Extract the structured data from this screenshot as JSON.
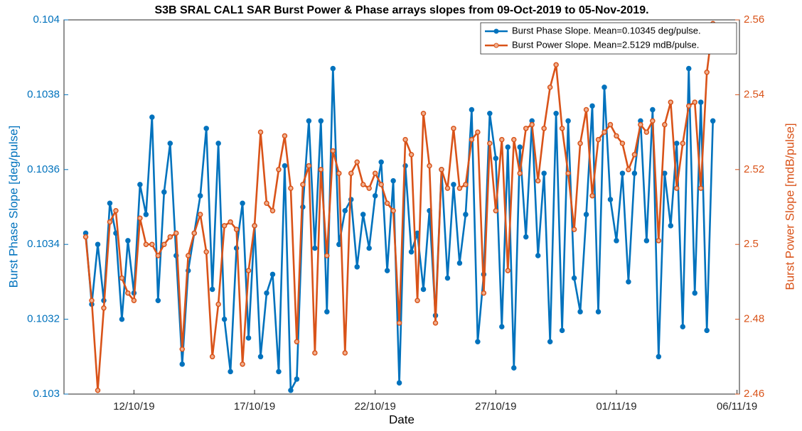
{
  "chart_data": {
    "type": "line",
    "title": "S3B SRAL CAL1 SAR Burst Power & Phase arrays slopes from 09-Oct-2019 to 05-Nov-2019.",
    "x_label": "Date",
    "y_label": "Burst Phase Slope [deg/pulse]",
    "y2_label": "Burst Power Slope [mdB/pulse]",
    "legend": "northeast",
    "xlim": [
      9.1,
      37.1
    ],
    "xticks": [
      {
        "value": 12,
        "label": "12/10/19"
      },
      {
        "value": 17,
        "label": "17/10/19"
      },
      {
        "value": 22,
        "label": "22/10/19"
      },
      {
        "value": 27,
        "label": "27/10/19"
      },
      {
        "value": 32,
        "label": "01/11/19"
      },
      {
        "value": 37,
        "label": "06/11/19"
      }
    ],
    "ylim": [
      0.103,
      0.104
    ],
    "yticks": [
      0.103,
      0.1032,
      0.1034,
      0.1036,
      0.1038,
      0.104
    ],
    "y2lim": [
      2.46,
      2.56
    ],
    "y2ticks": [
      2.46,
      2.48,
      2.5,
      2.52,
      2.54,
      2.56
    ],
    "x": [
      10,
      10.25,
      10.5,
      10.75,
      11,
      11.25,
      11.5,
      11.75,
      12,
      12.25,
      12.5,
      12.75,
      13,
      13.25,
      13.5,
      13.75,
      14,
      14.25,
      14.5,
      14.75,
      15,
      15.25,
      15.5,
      15.75,
      16,
      16.25,
      16.5,
      16.75,
      17,
      17.25,
      17.5,
      17.75,
      18,
      18.25,
      18.5,
      18.75,
      19,
      19.25,
      19.5,
      19.75,
      20,
      20.25,
      20.5,
      20.75,
      21,
      21.25,
      21.5,
      21.75,
      22,
      22.25,
      22.5,
      22.75,
      23,
      23.25,
      23.5,
      23.75,
      24,
      24.25,
      24.5,
      24.75,
      25,
      25.25,
      25.5,
      25.75,
      26,
      26.25,
      26.5,
      26.75,
      27,
      27.25,
      27.5,
      27.75,
      28,
      28.25,
      28.5,
      28.75,
      29,
      29.25,
      29.5,
      29.75,
      30,
      30.25,
      30.5,
      30.75,
      31,
      31.25,
      31.5,
      31.75,
      32,
      32.25,
      32.5,
      32.75,
      33,
      33.25,
      33.5,
      33.75,
      34,
      34.25,
      34.5,
      34.75,
      35,
      35.25,
      35.5,
      35.75,
      36
    ],
    "series": [
      {
        "name": "Burst Phase Slope. Mean=0.10345 deg/pulse.",
        "color": "#0072BD",
        "axis": "y",
        "values": [
          0.10343,
          0.10324,
          0.1034,
          0.10325,
          0.10351,
          0.10343,
          0.1032,
          0.10341,
          0.10327,
          0.10356,
          0.10348,
          0.10374,
          0.10325,
          0.10354,
          0.10367,
          0.10337,
          0.10308,
          0.10333,
          0.10343,
          0.10353,
          0.10371,
          0.10328,
          0.10367,
          0.1032,
          0.10306,
          0.10339,
          0.10351,
          0.10315,
          0.10345,
          0.1031,
          0.10327,
          0.10332,
          0.10306,
          0.10361,
          0.10301,
          0.10304,
          0.1035,
          0.10373,
          0.10339,
          0.10373,
          0.10322,
          0.10387,
          0.1034,
          0.10349,
          0.10352,
          0.10334,
          0.10348,
          0.10339,
          0.10353,
          0.10362,
          0.10333,
          0.10357,
          0.10303,
          0.10361,
          0.10338,
          0.10343,
          0.10328,
          0.10349,
          0.10321,
          0.1036,
          0.10331,
          0.10356,
          0.10335,
          0.10348,
          0.10376,
          0.10314,
          0.10332,
          0.10375,
          0.10363,
          0.10318,
          0.10366,
          0.10307,
          0.10366,
          0.10342,
          0.10373,
          0.10337,
          0.10359,
          0.10314,
          0.10375,
          0.10317,
          0.10373,
          0.10331,
          0.10322,
          0.10348,
          0.10377,
          0.10322,
          0.10382,
          0.10352,
          0.10341,
          0.10359,
          0.1033,
          0.10359,
          0.10373,
          0.10341,
          0.10376,
          0.1031,
          0.10359,
          0.10345,
          0.10367,
          0.10318,
          0.10387,
          0.10327,
          0.10378,
          0.10317,
          0.10373
        ]
      },
      {
        "name": "Burst Power Slope. Mean=2.5129 mdB/pulse.",
        "color": "#D95319",
        "axis": "y2",
        "values": [
          2.502,
          2.485,
          2.461,
          2.483,
          2.506,
          2.509,
          2.491,
          2.487,
          2.485,
          2.507,
          2.5,
          2.5,
          2.497,
          2.5,
          2.502,
          2.503,
          2.472,
          2.497,
          2.503,
          2.508,
          2.498,
          2.47,
          2.484,
          2.505,
          2.506,
          2.504,
          2.468,
          2.493,
          2.505,
          2.53,
          2.511,
          2.509,
          2.52,
          2.529,
          2.515,
          2.474,
          2.516,
          2.521,
          2.471,
          2.52,
          2.497,
          2.525,
          2.519,
          2.471,
          2.519,
          2.522,
          2.516,
          2.515,
          2.519,
          2.516,
          2.511,
          2.509,
          2.479,
          2.528,
          2.524,
          2.485,
          2.535,
          2.521,
          2.479,
          2.52,
          2.515,
          2.531,
          2.515,
          2.516,
          2.528,
          2.53,
          2.487,
          2.527,
          2.509,
          2.528,
          2.493,
          2.528,
          2.519,
          2.531,
          2.532,
          2.517,
          2.531,
          2.542,
          2.548,
          2.531,
          2.519,
          2.504,
          2.527,
          2.536,
          2.513,
          2.528,
          2.53,
          2.532,
          2.529,
          2.527,
          2.52,
          2.524,
          2.532,
          2.53,
          2.533,
          2.501,
          2.532,
          2.538,
          2.515,
          2.527,
          2.537,
          2.538,
          2.515,
          2.546,
          2.559
        ]
      }
    ]
  }
}
